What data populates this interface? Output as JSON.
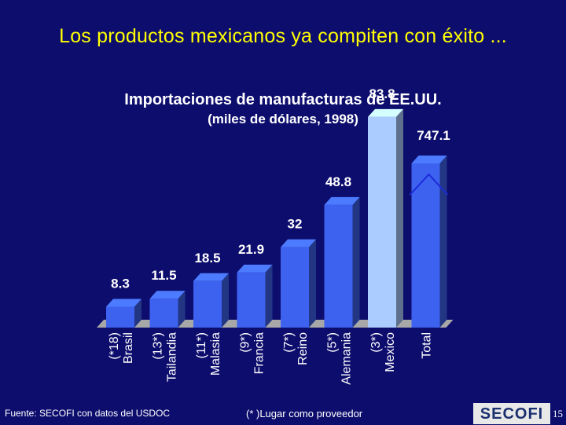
{
  "page": {
    "title": "Los productos mexicanos ya compiten con éxito ...",
    "footer_source": "Fuente: SECOFI con datos del USDOC",
    "footer_note": "(* )Lugar como proveedor",
    "logo_text": "SECOFI",
    "page_number": "15"
  },
  "chart_data": {
    "type": "bar",
    "title": "Importaciones de manufacturas de EE.UU.",
    "subtitle": "(miles de dólares, 1998)",
    "categories": [
      {
        "rank": "(*18)",
        "name": "Brasil",
        "value": 8.3,
        "value_label": "8.3"
      },
      {
        "rank": "(13*)",
        "name": "Tailandia",
        "value": 11.5,
        "value_label": "11.5"
      },
      {
        "rank": "(11*)",
        "name": "Malasia",
        "value": 18.5,
        "value_label": "18.5"
      },
      {
        "rank": "(9*)",
        "name": "Francia",
        "value": 21.9,
        "value_label": "21.9"
      },
      {
        "rank": "(7*)",
        "name": "Reino",
        "value": 32,
        "value_label": "32"
      },
      {
        "rank": "(5*)",
        "name": "Alemania",
        "value": 48.8,
        "value_label": "48.8"
      },
      {
        "rank": "(3*)",
        "name": "Mexico",
        "value": 83.8,
        "value_label": "83.8"
      },
      {
        "rank": "",
        "name": "Total",
        "value": 747.1,
        "value_label": "747.1"
      }
    ],
    "axis_break": "broken scale on Total bar",
    "colors": {
      "bar": "#3d62f0",
      "highlight_bar": "#aaccff",
      "total_bar": "#3d62f0",
      "floor": "#a8a8a8",
      "axis_break_line": "#1d2bd8",
      "text": "#ffffff",
      "title": "#ffff00",
      "background": "#0d0d6e"
    },
    "highlight": "Mexico"
  }
}
